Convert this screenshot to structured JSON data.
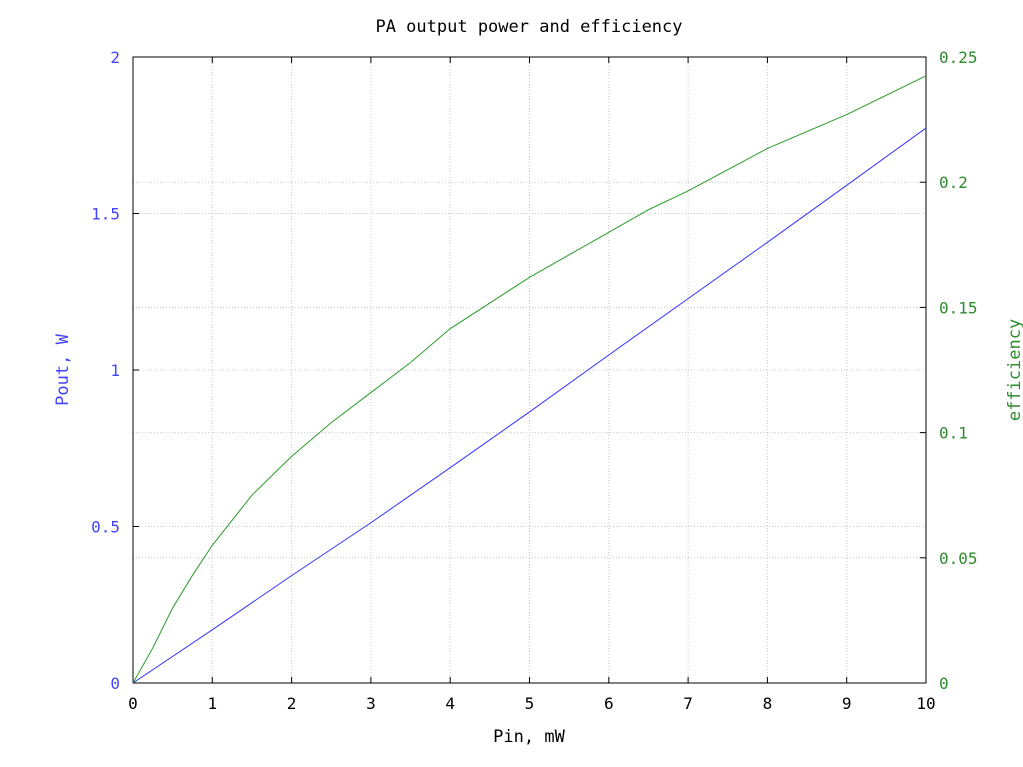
{
  "chart_data": {
    "type": "line",
    "title": "PA output power and efficiency",
    "xlabel": "Pin, mW",
    "ylabel_left": "Pout, W",
    "ylabel_right": "efficiency",
    "xlim": [
      0,
      10
    ],
    "ylim_left": [
      0,
      2
    ],
    "ylim_right": [
      0,
      0.25
    ],
    "x_ticks": [
      "0",
      "1",
      "2",
      "3",
      "4",
      "5",
      "6",
      "7",
      "8",
      "9",
      "10"
    ],
    "y_left_ticks": [
      "0",
      "0.5",
      "1",
      "1.5",
      "2"
    ],
    "y_right_ticks": [
      "0",
      "0.05",
      "0.1",
      "0.15",
      "0.2",
      "0.25"
    ],
    "grid": true,
    "colors": {
      "left_axis": "#4444ff",
      "right_axis": "#2e8b2e",
      "pout_line": "#3333ff",
      "efficiency_line": "#2a9a2a",
      "grid": "#c8c8c8",
      "axes": "#000000"
    },
    "series": [
      {
        "axis": "left",
        "color": "#3333ff",
        "x": [
          0,
          1,
          2,
          3,
          4,
          5,
          6,
          7,
          8,
          9,
          10
        ],
        "values": [
          0,
          0.17,
          0.343,
          0.512,
          0.688,
          0.866,
          1.048,
          1.228,
          1.408,
          1.59,
          1.773
        ]
      },
      {
        "axis": "right",
        "color": "#2a9a2a",
        "x": [
          0,
          0.25,
          0.5,
          0.75,
          1,
          1.5,
          2,
          2.5,
          3,
          3.5,
          4,
          5,
          6,
          6.5,
          7,
          8,
          9,
          10
        ],
        "values": [
          0,
          0.014,
          0.03,
          0.043,
          0.055,
          0.075,
          0.0905,
          0.104,
          0.116,
          0.128,
          0.1415,
          0.162,
          0.18,
          0.189,
          0.1965,
          0.2135,
          0.227,
          0.2425
        ]
      }
    ]
  }
}
